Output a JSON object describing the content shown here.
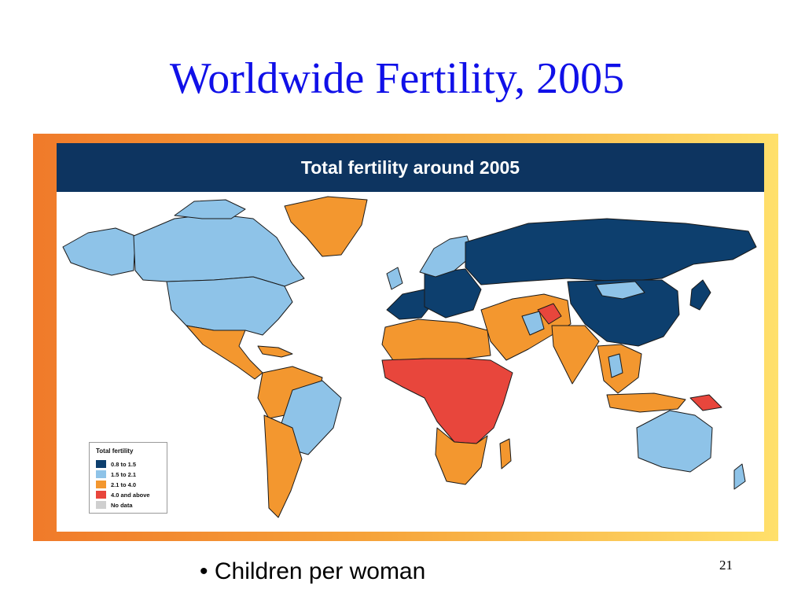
{
  "slide": {
    "title": "Worldwide Fertility, 2005",
    "bullet": "• Children per woman",
    "page_number": "21"
  },
  "map": {
    "header": "Total fertility around 2005",
    "legend": {
      "title": "Total fertility",
      "items": [
        {
          "label": "0.8 to 1.5",
          "color": "#0d3f6e"
        },
        {
          "label": "1.5 to 2.1",
          "color": "#8ec3e8"
        },
        {
          "label": "2.1 to 4.0",
          "color": "#f3972f"
        },
        {
          "label": "4.0 and above",
          "color": "#e8463c"
        },
        {
          "label": "No data",
          "color": "#cfcfcf"
        }
      ]
    },
    "colors": {
      "frame_left": "#f07a2a",
      "frame_right": "#ffe06b",
      "header_bg": "#0d3460",
      "border": "#1a1a1a"
    }
  }
}
